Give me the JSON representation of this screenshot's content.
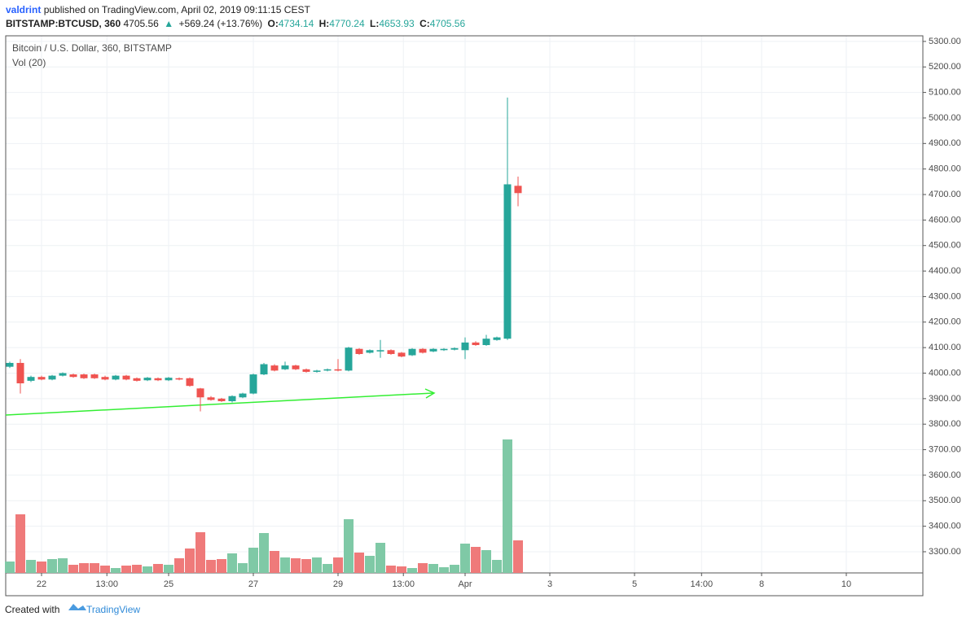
{
  "header": {
    "author": "valdrint",
    "published": "published on TradingView.com, April 02, 2019 09:11:15 CEST",
    "symbol": "BITSTAMP:BTCUSD, 360",
    "last": "4705.56",
    "arrow": "▲",
    "change": "+569.24 (+13.76%)",
    "ohlc": [
      {
        "key": "O:",
        "value": "4734.14"
      },
      {
        "key": "H:",
        "value": "4770.24"
      },
      {
        "key": "L:",
        "value": "4653.93"
      },
      {
        "key": "C:",
        "value": "4705.56"
      }
    ]
  },
  "footer": {
    "created": "Created with",
    "brand": "TradingView"
  },
  "chart_data": {
    "type": "candlestick",
    "title": "Bitcoin / U.S. Dollar, 360, BITSTAMP",
    "volume_label": "Vol (20)",
    "up_color": "#26a69a",
    "down_color": "#ef5350",
    "volume_up_color": "#7fc9a6",
    "volume_down_color": "#ef7a7a",
    "grid": true,
    "x": [
      0,
      1,
      2,
      3,
      4,
      5,
      6,
      7,
      8,
      9,
      10,
      11,
      12,
      13,
      14,
      15,
      16,
      17,
      18,
      19,
      20,
      21,
      22,
      23,
      24,
      25,
      26,
      27,
      28,
      29,
      30,
      31,
      32,
      33,
      34,
      35,
      36,
      37,
      38,
      39,
      40,
      41,
      42,
      43,
      44,
      45,
      46,
      47,
      48
    ],
    "open": [
      4025,
      4040,
      3970,
      3985,
      3975,
      3990,
      3995,
      3995,
      3995,
      3985,
      3975,
      3990,
      3980,
      3972,
      3980,
      3972,
      3980,
      3980,
      3940,
      3905,
      3900,
      3890,
      3905,
      3920,
      3995,
      4030,
      4015,
      4030,
      4015,
      4005,
      4010,
      4015,
      4010,
      4095,
      4080,
      4085,
      4090,
      4080,
      4070,
      4095,
      4085,
      4090,
      4092,
      4090,
      4120,
      4110,
      4130,
      4135,
      4734.14
    ],
    "high": [
      4045,
      4055,
      3990,
      3990,
      3993,
      4003,
      3998,
      3998,
      3998,
      3990,
      3993,
      3993,
      3983,
      3985,
      3983,
      3985,
      3983,
      3983,
      3942,
      3910,
      3903,
      3913,
      3923,
      3998,
      4040,
      4035,
      4045,
      4033,
      4018,
      4013,
      4018,
      4055,
      4103,
      4098,
      4093,
      4130,
      4093,
      4083,
      4098,
      4098,
      4098,
      4098,
      4101,
      4140,
      4125,
      4150,
      4143,
      5080,
      4770.24
    ],
    "low": [
      4020,
      3920,
      3965,
      3972,
      3972,
      3987,
      3982,
      3977,
      3977,
      3972,
      3972,
      3972,
      3967,
      3969,
      3969,
      3969,
      3972,
      3947,
      3850,
      3892,
      3887,
      3885,
      3902,
      3917,
      3992,
      4007,
      4012,
      4012,
      4002,
      4002,
      4007,
      4007,
      4007,
      4072,
      4077,
      4060,
      4072,
      4062,
      4067,
      4077,
      4082,
      4087,
      4089,
      4055,
      4107,
      4107,
      4127,
      4130,
      4653.93
    ],
    "close": [
      4040,
      3960,
      3985,
      3975,
      3990,
      4000,
      3985,
      3980,
      3980,
      3975,
      3990,
      3975,
      3970,
      3982,
      3972,
      3982,
      3975,
      3950,
      3905,
      3895,
      3890,
      3910,
      3920,
      3995,
      4035,
      4010,
      4030,
      4015,
      4005,
      4010,
      4015,
      4010,
      4100,
      4075,
      4090,
      4090,
      4075,
      4065,
      4095,
      4080,
      4095,
      4095,
      4098,
      4120,
      4110,
      4135,
      4140,
      4740,
      4705.56
    ],
    "volume": [
      14,
      72,
      16,
      14,
      17,
      18,
      10,
      12,
      12,
      9,
      6,
      9,
      10,
      8,
      11,
      10,
      18,
      30,
      50,
      16,
      17,
      24,
      12,
      31,
      49,
      27,
      19,
      18,
      17,
      19,
      11,
      19,
      66,
      25,
      21,
      37,
      9,
      8,
      6,
      12,
      11,
      7,
      10,
      36,
      32,
      28,
      16,
      164,
      40
    ],
    "xlim": [
      -0.385,
      86.23
    ],
    "xticks": [
      {
        "value": 3,
        "label": "22"
      },
      {
        "value": 9.17,
        "label": "13:00"
      },
      {
        "value": 15,
        "label": "25"
      },
      {
        "value": 23,
        "label": "27"
      },
      {
        "value": 31,
        "label": "29"
      },
      {
        "value": 37.17,
        "label": "13:00"
      },
      {
        "value": 43,
        "label": "Apr"
      },
      {
        "value": 51,
        "label": "3"
      },
      {
        "value": 59,
        "label": "5"
      },
      {
        "value": 65.33,
        "label": "14:00"
      },
      {
        "value": 71,
        "label": "8"
      },
      {
        "value": 79,
        "label": "10"
      }
    ],
    "ylim": [
      3217,
      5322
    ],
    "yticks": [
      {
        "value": 3300,
        "label": "3300.00"
      },
      {
        "value": 3400,
        "label": "3400.00"
      },
      {
        "value": 3500,
        "label": "3500.00"
      },
      {
        "value": 3600,
        "label": "3600.00"
      },
      {
        "value": 3700,
        "label": "3700.00"
      },
      {
        "value": 3800,
        "label": "3800.00"
      },
      {
        "value": 3900,
        "label": "3900.00"
      },
      {
        "value": 4000,
        "label": "4000.00"
      },
      {
        "value": 4100,
        "label": "4100.00"
      },
      {
        "value": 4200,
        "label": "4200.00"
      },
      {
        "value": 4300,
        "label": "4300.00"
      },
      {
        "value": 4400,
        "label": "4400.00"
      },
      {
        "value": 4500,
        "label": "4500.00"
      },
      {
        "value": 4600,
        "label": "4600.00"
      },
      {
        "value": 4700,
        "label": "4700.00"
      },
      {
        "value": 4800,
        "label": "4800.00"
      },
      {
        "value": 4900,
        "label": "4900.00"
      },
      {
        "value": 5000,
        "label": "5000.00"
      },
      {
        "value": 5100,
        "label": "5100.00"
      },
      {
        "value": 5200,
        "label": "5200.00"
      },
      {
        "value": 5300,
        "label": "5300.00"
      }
    ]
  }
}
